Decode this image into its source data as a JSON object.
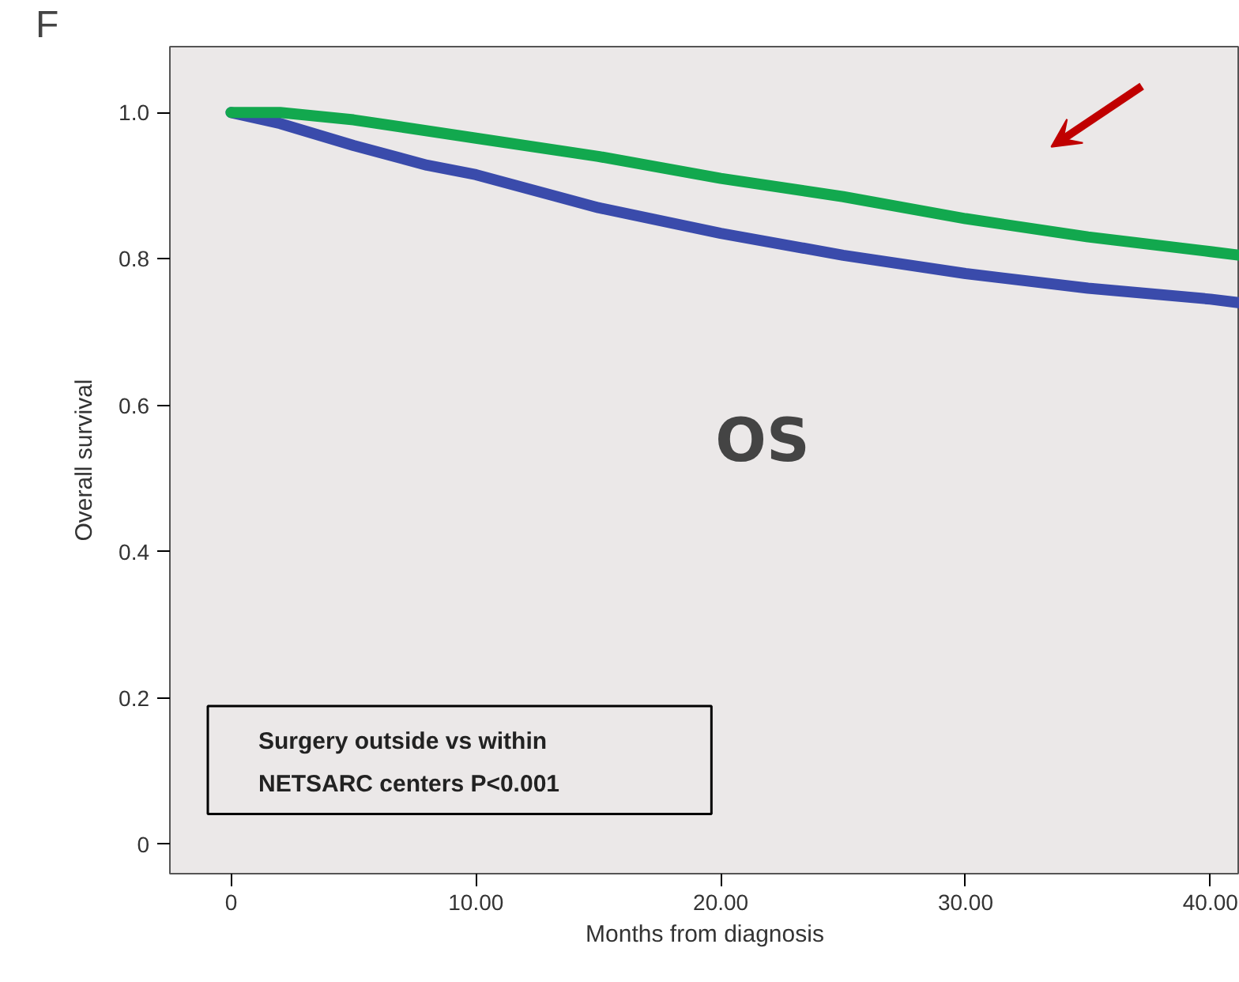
{
  "chart_data": {
    "type": "line",
    "xlabel": "Months from diagnosis",
    "ylabel": "Overall survival",
    "xlim": [
      -2.5,
      41.2
    ],
    "ylim": [
      -0.04,
      1.09
    ],
    "xticks": [
      {
        "value": 0,
        "label": "0"
      },
      {
        "value": 10,
        "label": "10.00"
      },
      {
        "value": 20,
        "label": "20.00"
      },
      {
        "value": 30,
        "label": "30.00"
      },
      {
        "value": 40,
        "label": "40.00"
      }
    ],
    "yticks": [
      {
        "value": 0,
        "label": "0"
      },
      {
        "value": 0.2,
        "label": "0.2"
      },
      {
        "value": 0.4,
        "label": "0.4"
      },
      {
        "value": 0.6,
        "label": "0.6"
      },
      {
        "value": 0.8,
        "label": "0.8"
      },
      {
        "value": 1.0,
        "label": "1.0"
      }
    ],
    "grid": false,
    "series": [
      {
        "color": "#3a4bab",
        "x": [
          0,
          2,
          5,
          8,
          10,
          15,
          20,
          25,
          30,
          35,
          40,
          41.2
        ],
        "values": [
          1.0,
          0.985,
          0.955,
          0.928,
          0.915,
          0.87,
          0.835,
          0.805,
          0.78,
          0.76,
          0.745,
          0.74
        ]
      },
      {
        "color": "#12a84e",
        "x": [
          0,
          2,
          5,
          10,
          15,
          20,
          25,
          30,
          35,
          40,
          41.2
        ],
        "values": [
          1.0,
          1.0,
          0.99,
          0.965,
          0.94,
          0.91,
          0.885,
          0.855,
          0.83,
          0.81,
          0.805
        ]
      }
    ],
    "annotations": [
      "F",
      "OS",
      "Surgery outside vs within\nNETSARC centers  P<0.001"
    ]
  }
}
